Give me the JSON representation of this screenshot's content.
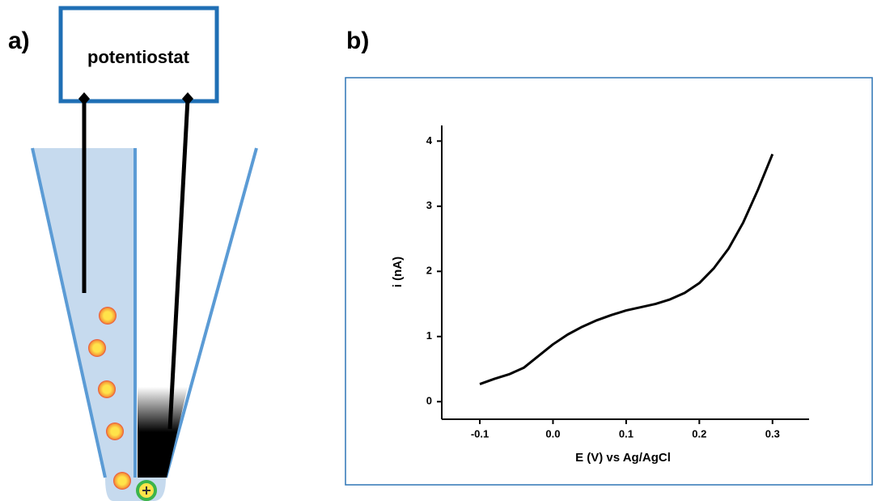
{
  "diagram": {
    "panel_label": "a)",
    "box_label": "potentiostat"
  },
  "chart_data": {
    "type": "line",
    "panel_label": "b)",
    "x_label": "E (V) vs Ag/AgCl",
    "y_label": "i (nA)",
    "x": [
      -0.1,
      -0.08,
      -0.06,
      -0.04,
      -0.02,
      0.0,
      0.02,
      0.04,
      0.06,
      0.08,
      0.1,
      0.12,
      0.14,
      0.16,
      0.18,
      0.2,
      0.22,
      0.24,
      0.26,
      0.28,
      0.3
    ],
    "series": [
      {
        "color": "#000000",
        "values": [
          0.27,
          0.35,
          0.42,
          0.52,
          0.7,
          0.88,
          1.03,
          1.15,
          1.25,
          1.33,
          1.4,
          1.45,
          1.5,
          1.57,
          1.67,
          1.82,
          2.05,
          2.35,
          2.75,
          3.25,
          3.8
        ]
      }
    ],
    "xlim": [
      -0.152,
      0.35
    ],
    "xticks": [
      -0.1,
      {
        "value": 0,
        "label": "0.0"
      },
      0.1,
      0.2,
      0.3
    ],
    "ylim": [
      -0.27,
      4.24
    ],
    "yticks": [
      0,
      1,
      2,
      3,
      4
    ]
  }
}
